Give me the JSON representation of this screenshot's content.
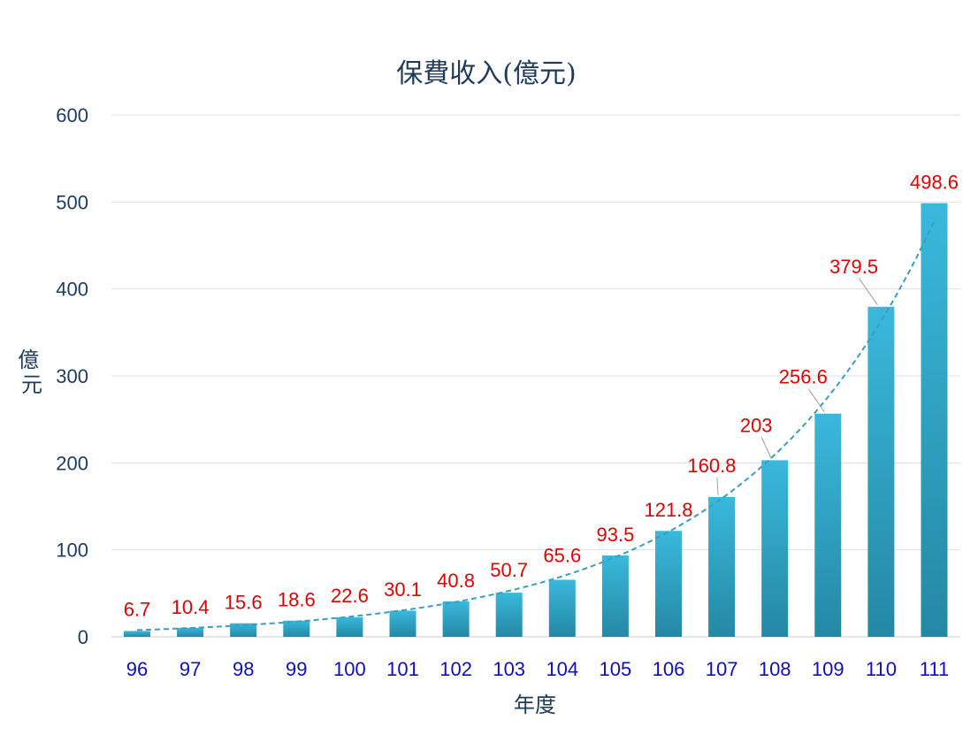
{
  "chart_data": {
    "type": "bar",
    "title": "保費收入(億元)",
    "xlabel": "年度",
    "ylabel": "億元",
    "categories": [
      "96",
      "97",
      "98",
      "99",
      "100",
      "101",
      "102",
      "103",
      "104",
      "105",
      "106",
      "107",
      "108",
      "109",
      "110",
      "111"
    ],
    "values": [
      6.7,
      10.4,
      15.6,
      18.6,
      22.6,
      30.1,
      40.8,
      50.7,
      65.6,
      93.5,
      121.8,
      160.8,
      203,
      256.6,
      379.5,
      498.6
    ],
    "data_labels": [
      "6.7",
      "10.4",
      "15.6",
      "18.6",
      "22.6",
      "30.1",
      "40.8",
      "50.7",
      "65.6",
      "93.5",
      "121.8",
      "160.8",
      "203",
      "256.6",
      "379.5",
      "498.6"
    ],
    "yticks": [
      "0",
      "100",
      "200",
      "300",
      "400",
      "500",
      "600"
    ],
    "ylim": [
      0,
      600
    ],
    "grid": true,
    "trendline": "exponential, dashed",
    "colors": {
      "bar_top": "#3ab8dc",
      "bar_bottom": "#2488a4",
      "trend": "#3a9ec4",
      "data_label": "#e00000",
      "x_tick": "#0d0dc8",
      "text": "#1f3b5c",
      "grid": "#d9e1ea"
    }
  }
}
